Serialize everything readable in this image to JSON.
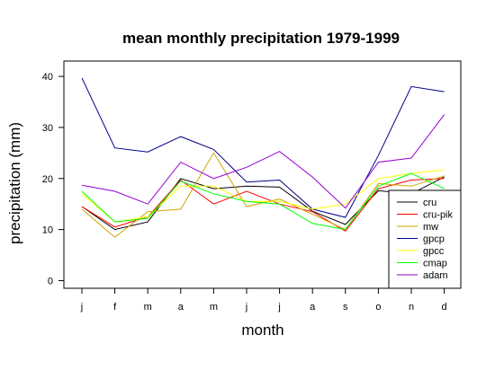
{
  "chart_data": {
    "type": "line",
    "title": "mean monthly precipitation 1979-1999",
    "xlabel": "month",
    "ylabel": "precipitation (mm)",
    "ylim": [
      -1.5,
      43
    ],
    "yticks": [
      0,
      10,
      20,
      30,
      40
    ],
    "categories": [
      "j",
      "f",
      "m",
      "a",
      "m",
      "j",
      "j",
      "a",
      "s",
      "o",
      "n",
      "d"
    ],
    "grid": false,
    "legend_position": "bottom-right",
    "series": [
      {
        "name": "cru",
        "color": "#000000",
        "values": [
          14.5,
          10.0,
          11.5,
          20.0,
          18.0,
          18.5,
          18.3,
          13.6,
          11.0,
          17.6,
          17.0,
          20.3
        ]
      },
      {
        "name": "cru-pik",
        "color": "#ff0000",
        "values": [
          14.5,
          10.5,
          12.5,
          19.7,
          15.0,
          17.5,
          15.0,
          13.5,
          9.7,
          18.0,
          19.7,
          20.0
        ]
      },
      {
        "name": "mw",
        "color": "#cda500",
        "values": [
          14.0,
          8.5,
          13.5,
          14.0,
          25.0,
          14.5,
          16.0,
          13.0,
          10.0,
          19.0,
          18.5,
          20.5
        ]
      },
      {
        "name": "gpcp",
        "color": "#00008b",
        "values": [
          39.7,
          26.0,
          25.2,
          28.2,
          25.7,
          19.3,
          19.7,
          14.0,
          12.4,
          24.5,
          38.0,
          37.0
        ]
      },
      {
        "name": "gpcc",
        "color": "#ffff00",
        "values": [
          17.0,
          11.5,
          12.5,
          18.5,
          18.5,
          15.5,
          15.5,
          14.0,
          15.0,
          20.0,
          21.0,
          21.7
        ]
      },
      {
        "name": "cmap",
        "color": "#00ff00",
        "values": [
          17.5,
          11.5,
          12.2,
          19.5,
          17.0,
          15.5,
          15.0,
          11.2,
          10.0,
          18.5,
          21.0,
          18.0
        ]
      },
      {
        "name": "adam",
        "color": "#9400d3",
        "values": [
          18.7,
          17.5,
          15.0,
          23.2,
          20.0,
          22.2,
          25.3,
          20.3,
          14.2,
          23.2,
          24.0,
          32.5
        ]
      }
    ]
  }
}
